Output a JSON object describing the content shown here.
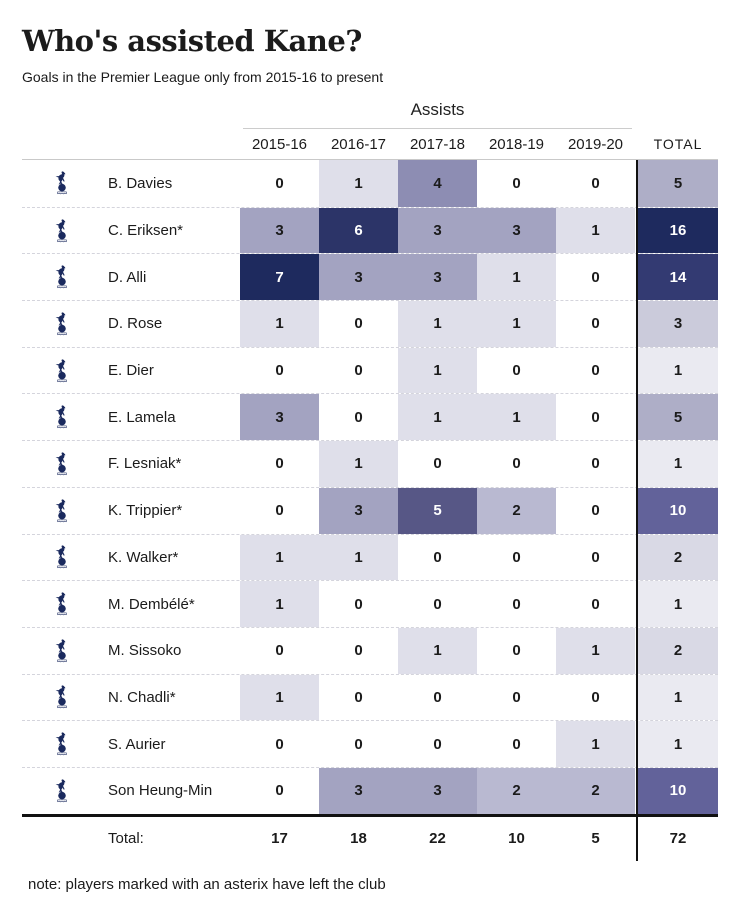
{
  "header": {
    "title": "Who's assisted Kane?",
    "subtitle": "Goals in the Premier League only from 2015-16 to present"
  },
  "chart_data": {
    "type": "heatmap",
    "group_label": "Assists",
    "categories": [
      "2015-16",
      "2016-17",
      "2017-18",
      "2018-19",
      "2019-20"
    ],
    "total_label": "TOTAL",
    "rows": [
      {
        "player": "B. Davies",
        "values": [
          0,
          1,
          4,
          0,
          0
        ],
        "total": 5
      },
      {
        "player": "C. Eriksen*",
        "values": [
          3,
          6,
          3,
          3,
          1
        ],
        "total": 16
      },
      {
        "player": "D. Alli",
        "values": [
          7,
          3,
          3,
          1,
          0
        ],
        "total": 14
      },
      {
        "player": "D. Rose",
        "values": [
          1,
          0,
          1,
          1,
          0
        ],
        "total": 3
      },
      {
        "player": "E. Dier",
        "values": [
          0,
          0,
          1,
          0,
          0
        ],
        "total": 1
      },
      {
        "player": "E. Lamela",
        "values": [
          3,
          0,
          1,
          1,
          0
        ],
        "total": 5
      },
      {
        "player": "F. Lesniak*",
        "values": [
          0,
          1,
          0,
          0,
          0
        ],
        "total": 1
      },
      {
        "player": "K. Trippier*",
        "values": [
          0,
          3,
          5,
          2,
          0
        ],
        "total": 10
      },
      {
        "player": "K. Walker*",
        "values": [
          1,
          1,
          0,
          0,
          0
        ],
        "total": 2
      },
      {
        "player": "M. Dembélé*",
        "values": [
          1,
          0,
          0,
          0,
          0
        ],
        "total": 1
      },
      {
        "player": "M. Sissoko",
        "values": [
          0,
          0,
          1,
          0,
          1
        ],
        "total": 2
      },
      {
        "player": "N. Chadli*",
        "values": [
          1,
          0,
          0,
          0,
          0
        ],
        "total": 1
      },
      {
        "player": "S. Aurier",
        "values": [
          0,
          0,
          0,
          0,
          1
        ],
        "total": 1
      },
      {
        "player": "Son Heung-Min",
        "values": [
          0,
          3,
          3,
          2,
          2
        ],
        "total": 10
      }
    ],
    "totals_row": {
      "label": "Total:",
      "values": [
        17,
        18,
        22,
        10,
        5
      ],
      "total": 72
    },
    "color_scales": {
      "season": {
        "0": "#ffffff",
        "1": "#dfdfea",
        "2": "#b9b9d1",
        "3": "#a3a3c1",
        "4": "#8d8db3",
        "5": "#575786",
        "6": "#2c3468",
        "7": "#1e2a5e"
      },
      "total": {
        "1": "#eaeaf1",
        "2": "#d9d9e5",
        "3": "#cbcbdb",
        "5": "#aeaec7",
        "10": "#62629a",
        "14": "#333a72",
        "16": "#1e2a5e"
      },
      "season_light_text_min": 5,
      "total_light_text_min": 10,
      "light_text": "#ffffff",
      "dark_text": "#1b1b1b"
    },
    "crest_icon": "tottenham-crest-icon",
    "crest_color": "#1b2a5e"
  },
  "footer": {
    "note": "note: players marked with an asterix have left the club"
  }
}
